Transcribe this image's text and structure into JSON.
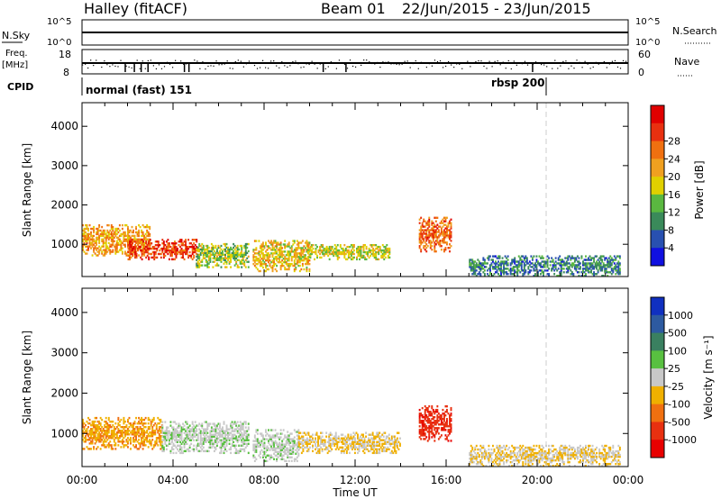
{
  "header": {
    "site": "Halley (fitACF)",
    "beam_label": "Beam 01",
    "date_range": "22/Jun/2015 - 23/Jun/2015"
  },
  "top_panels": {
    "nsky_label": "N.Sky",
    "nsky_ticks": [
      "10^5",
      "10^0"
    ],
    "nsearch_label": "N.Search",
    "nsearch_ticks": [
      "10^5",
      "10^0"
    ],
    "freq_label": "Freq.",
    "freq_unit": "[MHz]",
    "freq_ticks": [
      "18",
      "8"
    ],
    "nave_label": "Nave",
    "nave_ticks": [
      "60",
      "0"
    ],
    "cpid_label": "CPID",
    "cpid_modes": [
      {
        "label": "normal (fast) 151",
        "start_hour": 0
      },
      {
        "label": "rbsp 200",
        "start_hour": 20.9
      }
    ]
  },
  "axes": {
    "ylabel": "Slant Range [km]",
    "xlabel": "Time UT",
    "x_ticks": [
      "00:00",
      "04:00",
      "08:00",
      "12:00",
      "16:00",
      "20:00",
      "00:00"
    ],
    "y_ticks": [
      "1000",
      "2000",
      "3000",
      "4000"
    ]
  },
  "colorbars": {
    "power": {
      "label": "Power [dB]",
      "ticks": [
        "4",
        "8",
        "12",
        "16",
        "20",
        "24",
        "28"
      ],
      "colors": [
        "#1010e0",
        "#2850b0",
        "#3a8a5a",
        "#5ab840",
        "#e0d000",
        "#f0a020",
        "#f07010",
        "#e83010",
        "#e00000"
      ]
    },
    "velocity": {
      "label": "Velocity [m s⁻¹]",
      "ticks": [
        "1000",
        "500",
        "100",
        "25",
        "-25",
        "-100",
        "-500",
        "-1000"
      ],
      "colors": [
        "#1030c0",
        "#2d5aa0",
        "#3a8060",
        "#58c040",
        "#c8c8c8",
        "#f0b000",
        "#f07010",
        "#e83010",
        "#e80000"
      ]
    }
  },
  "chart_data": [
    {
      "type": "heatmap",
      "title": "Power [dB]",
      "xlabel": "Time UT",
      "ylabel": "Slant Range [km]",
      "xlim": [
        0,
        24
      ],
      "ylim": [
        180,
        4600
      ],
      "clim": [
        0,
        32
      ],
      "echo_regions": [
        {
          "t_start": 0.0,
          "t_end": 3.0,
          "r_min": 700,
          "r_max": 1500,
          "value": 20
        },
        {
          "t_start": 2.0,
          "t_end": 5.0,
          "r_min": 600,
          "r_max": 1100,
          "value": 26
        },
        {
          "t_start": 5.0,
          "t_end": 7.3,
          "r_min": 400,
          "r_max": 1000,
          "value": 14
        },
        {
          "t_start": 7.5,
          "t_end": 10.0,
          "r_min": 300,
          "r_max": 1100,
          "value": 18
        },
        {
          "t_start": 10.0,
          "t_end": 13.5,
          "r_min": 600,
          "r_max": 1000,
          "value": 16
        },
        {
          "t_start": 14.8,
          "t_end": 16.2,
          "r_min": 800,
          "r_max": 1700,
          "value": 24
        },
        {
          "t_start": 17.0,
          "t_end": 23.6,
          "r_min": 180,
          "r_max": 700,
          "value": 8
        }
      ]
    },
    {
      "type": "heatmap",
      "title": "Velocity [m s⁻¹]",
      "xlabel": "Time UT",
      "ylabel": "Slant Range [km]",
      "xlim": [
        0,
        24
      ],
      "ylim": [
        180,
        4600
      ],
      "clim": [
        -1000,
        1000
      ],
      "echo_regions": [
        {
          "t_start": 0.0,
          "t_end": 3.5,
          "r_min": 600,
          "r_max": 1400,
          "value": -300
        },
        {
          "t_start": 3.5,
          "t_end": 7.3,
          "r_min": 500,
          "r_max": 1300,
          "value": 60
        },
        {
          "t_start": 7.5,
          "t_end": 9.5,
          "r_min": 300,
          "r_max": 1100,
          "value": 50
        },
        {
          "t_start": 9.5,
          "t_end": 14.0,
          "r_min": 500,
          "r_max": 1000,
          "value": -120
        },
        {
          "t_start": 14.8,
          "t_end": 16.2,
          "r_min": 800,
          "r_max": 1700,
          "value": -700
        },
        {
          "t_start": 17.0,
          "t_end": 23.6,
          "r_min": 180,
          "r_max": 700,
          "value": -100
        }
      ]
    }
  ]
}
